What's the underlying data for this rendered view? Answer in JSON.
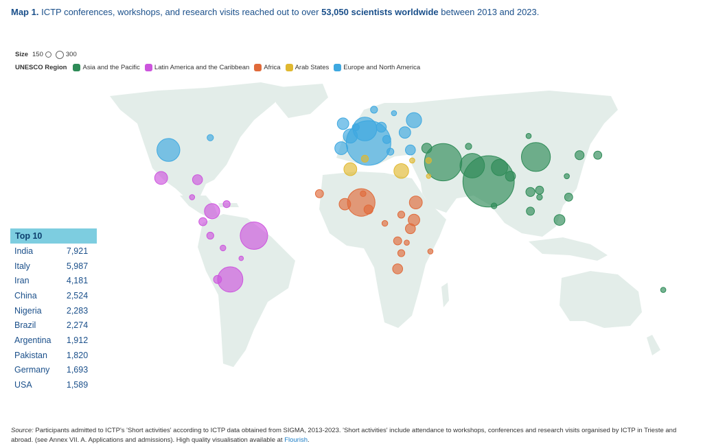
{
  "title": {
    "lead": "Map 1.",
    "text_a": " ICTP conferences, workshops, and research visits reached out to over ",
    "highlight": "53,050 scientists worldwide",
    "text_b": " between 2013 and 2023."
  },
  "legend": {
    "size_label": "Size",
    "size_small": "150",
    "size_large": "300",
    "region_label": "UNESCO Region",
    "regions": [
      {
        "name": "Asia and the Pacific",
        "color": "#2e8b57"
      },
      {
        "name": "Latin America and the Caribbean",
        "color": "#cc55dd"
      },
      {
        "name": "Africa",
        "color": "#e06a3a"
      },
      {
        "name": "Arab States",
        "color": "#e0b830"
      },
      {
        "name": "Europe and North America",
        "color": "#3ea8e0"
      }
    ]
  },
  "map": {
    "land_color": "#e3ede9",
    "bubbles": [
      {
        "region": 0,
        "lon": 78,
        "lat": 21,
        "value": 7921
      },
      {
        "region": 4,
        "lon": 12,
        "lat": 43,
        "value": 5987
      },
      {
        "region": 0,
        "lon": 53,
        "lat": 32,
        "value": 4181
      },
      {
        "region": 0,
        "lon": 104,
        "lat": 35,
        "value": 2524
      },
      {
        "region": 2,
        "lon": 8,
        "lat": 9,
        "value": 2283
      },
      {
        "region": 1,
        "lon": -51,
        "lat": -10,
        "value": 2274
      },
      {
        "region": 1,
        "lon": -64,
        "lat": -35,
        "value": 1912
      },
      {
        "region": 0,
        "lon": 69,
        "lat": 30,
        "value": 1820
      },
      {
        "region": 4,
        "lon": 10,
        "lat": 51,
        "value": 1693
      },
      {
        "region": 4,
        "lon": -98,
        "lat": 39,
        "value": 1589
      },
      {
        "region": 4,
        "lon": 37,
        "lat": 56,
        "value": 700
      },
      {
        "region": 4,
        "lon": 2,
        "lat": 47,
        "value": 600
      },
      {
        "region": 4,
        "lon": -3,
        "lat": 40,
        "value": 500
      },
      {
        "region": 4,
        "lon": -2,
        "lat": 54,
        "value": 400
      },
      {
        "region": 4,
        "lon": 19,
        "lat": 52,
        "value": 300
      },
      {
        "region": 4,
        "lon": 32,
        "lat": 49,
        "value": 400
      },
      {
        "region": 4,
        "lon": 15,
        "lat": 62,
        "value": 150
      },
      {
        "region": 4,
        "lon": 22,
        "lat": 45,
        "value": 200
      },
      {
        "region": 4,
        "lon": -75,
        "lat": 46,
        "value": 120
      },
      {
        "region": 4,
        "lon": 5,
        "lat": 52,
        "value": 150
      },
      {
        "region": 4,
        "lon": 26,
        "lat": 60,
        "value": 80
      },
      {
        "region": 4,
        "lon": 24,
        "lat": 38,
        "value": 150
      },
      {
        "region": 4,
        "lon": 35,
        "lat": 39,
        "value": 300
      },
      {
        "region": 3,
        "lon": 30,
        "lat": 27,
        "value": 650
      },
      {
        "region": 3,
        "lon": 2,
        "lat": 28,
        "value": 500
      },
      {
        "region": 3,
        "lon": 10,
        "lat": 34,
        "value": 150
      },
      {
        "region": 3,
        "lon": 36,
        "lat": 33,
        "value": 80
      },
      {
        "region": 3,
        "lon": 45,
        "lat": 33,
        "value": 100
      },
      {
        "region": 3,
        "lon": 45,
        "lat": 24,
        "value": 60
      },
      {
        "region": 0,
        "lon": 44,
        "lat": 40,
        "value": 300
      },
      {
        "region": 0,
        "lon": 67,
        "lat": 41,
        "value": 120
      },
      {
        "region": 0,
        "lon": 84,
        "lat": 29,
        "value": 800
      },
      {
        "region": 0,
        "lon": 90,
        "lat": 24,
        "value": 300
      },
      {
        "region": 0,
        "lon": 81,
        "lat": 7,
        "value": 100
      },
      {
        "region": 0,
        "lon": 101,
        "lat": 15,
        "value": 250
      },
      {
        "region": 0,
        "lon": 106,
        "lat": 16,
        "value": 200
      },
      {
        "region": 0,
        "lon": 106,
        "lat": 12,
        "value": 100
      },
      {
        "region": 0,
        "lon": 101,
        "lat": 4,
        "value": 200
      },
      {
        "region": 0,
        "lon": 117,
        "lat": -1,
        "value": 350
      },
      {
        "region": 0,
        "lon": 122,
        "lat": 12,
        "value": 200
      },
      {
        "region": 0,
        "lon": 128,
        "lat": 36,
        "value": 250
      },
      {
        "region": 0,
        "lon": 138,
        "lat": 36,
        "value": 200
      },
      {
        "region": 0,
        "lon": 121,
        "lat": 24,
        "value": 80
      },
      {
        "region": 0,
        "lon": 174,
        "lat": -41,
        "value": 80
      },
      {
        "region": 0,
        "lon": 100,
        "lat": 47,
        "value": 80
      },
      {
        "region": 1,
        "lon": -102,
        "lat": 23,
        "value": 500
      },
      {
        "region": 1,
        "lon": -74,
        "lat": 4,
        "value": 700
      },
      {
        "region": 1,
        "lon": -79,
        "lat": -2,
        "value": 200
      },
      {
        "region": 1,
        "lon": -75,
        "lat": -10,
        "value": 150
      },
      {
        "region": 1,
        "lon": -71,
        "lat": -35,
        "value": 200
      },
      {
        "region": 1,
        "lon": -66,
        "lat": 8,
        "value": 150
      },
      {
        "region": 1,
        "lon": -82,
        "lat": 22,
        "value": 300
      },
      {
        "region": 1,
        "lon": -68,
        "lat": -17,
        "value": 100
      },
      {
        "region": 1,
        "lon": -58,
        "lat": -23,
        "value": 60
      },
      {
        "region": 1,
        "lon": -85,
        "lat": 12,
        "value": 80
      },
      {
        "region": 2,
        "lon": 38,
        "lat": 9,
        "value": 500
      },
      {
        "region": 2,
        "lon": 37,
        "lat": -1,
        "value": 400
      },
      {
        "region": 2,
        "lon": 35,
        "lat": -6,
        "value": 300
      },
      {
        "region": 2,
        "lon": 28,
        "lat": -29,
        "value": 300
      },
      {
        "region": 2,
        "lon": -1,
        "lat": 8,
        "value": 400
      },
      {
        "region": 2,
        "lon": 12,
        "lat": 5,
        "value": 250
      },
      {
        "region": 2,
        "lon": -15,
        "lat": 14,
        "value": 200
      },
      {
        "region": 2,
        "lon": 30,
        "lat": 2,
        "value": 150
      },
      {
        "region": 2,
        "lon": 28,
        "lat": -13,
        "value": 200
      },
      {
        "region": 2,
        "lon": 30,
        "lat": -20,
        "value": 150
      },
      {
        "region": 2,
        "lon": 21,
        "lat": -3,
        "value": 100
      },
      {
        "region": 2,
        "lon": 46,
        "lat": -19,
        "value": 80
      },
      {
        "region": 2,
        "lon": 9,
        "lat": 14,
        "value": 100
      },
      {
        "region": 2,
        "lon": 33,
        "lat": -14,
        "value": 80
      }
    ]
  },
  "top10": {
    "heading": "Top 10",
    "rows": [
      {
        "country": "India",
        "value": "7,921"
      },
      {
        "country": "Italy",
        "value": "5,987"
      },
      {
        "country": "Iran",
        "value": "4,181"
      },
      {
        "country": "China",
        "value": "2,524"
      },
      {
        "country": "Nigeria",
        "value": "2,283"
      },
      {
        "country": "Brazil",
        "value": "2,274"
      },
      {
        "country": "Argentina",
        "value": "1,912"
      },
      {
        "country": "Pakistan",
        "value": "1,820"
      },
      {
        "country": "Germany",
        "value": "1,693"
      },
      {
        "country": "USA",
        "value": "1,589"
      }
    ]
  },
  "source": {
    "label": "Source:",
    "text": " Participants admitted to ICTP's 'Short activities' according to ICTP data obtained from SIGMA, 2013-2023. 'Short activities' include attendance to workshops, conferences and research visits organised by ICTP in Trieste and abroad. (see Annex VII. A. Applications and admissions). High quality visualisation available at ",
    "link": "Flourish",
    "end": "."
  }
}
